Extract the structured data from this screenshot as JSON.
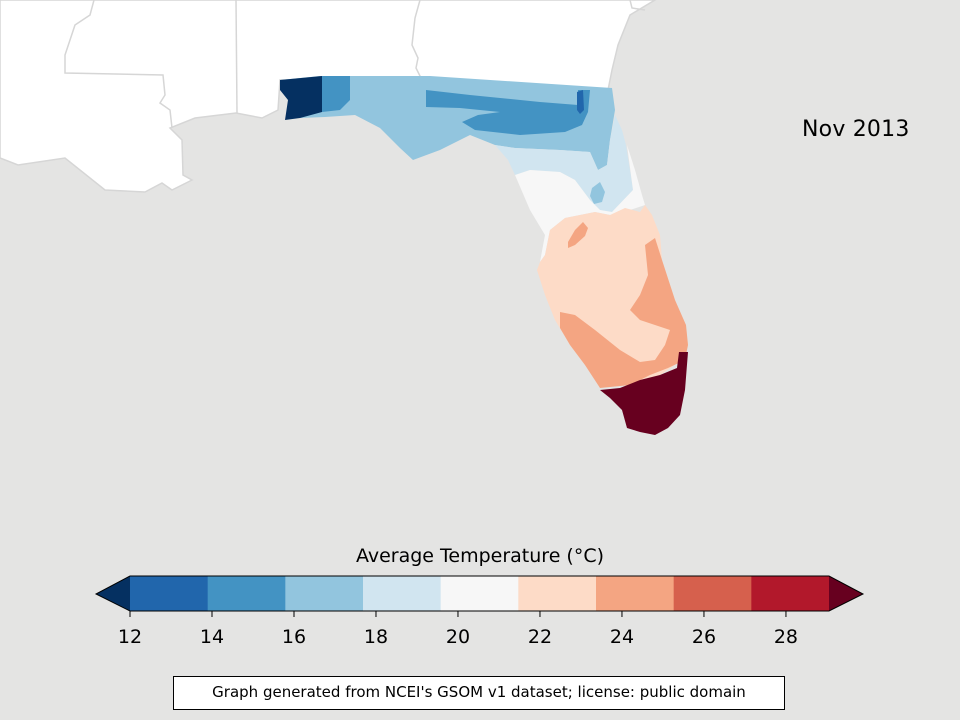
{
  "title": "Nov 2013",
  "colorbar": {
    "label": "Average Temperature (°C)",
    "ticks": [
      "12",
      "14",
      "16",
      "18",
      "20",
      "22",
      "24",
      "26",
      "28"
    ],
    "bins": [
      {
        "color": "#053061"
      },
      {
        "color": "#2166ac"
      },
      {
        "color": "#4393c3"
      },
      {
        "color": "#92c5de"
      },
      {
        "color": "#d1e5f0"
      },
      {
        "color": "#f7f7f7"
      },
      {
        "color": "#fddbc7"
      },
      {
        "color": "#f4a582"
      },
      {
        "color": "#d6604d"
      },
      {
        "color": "#b2182b"
      },
      {
        "color": "#67001f"
      }
    ]
  },
  "credit": "Graph generated from NCEI's GSOM v1 dataset; license: public domain",
  "colors": {
    "water": "#e4e4e3",
    "land": "#ffffff",
    "border": "#d0d0d0"
  }
}
